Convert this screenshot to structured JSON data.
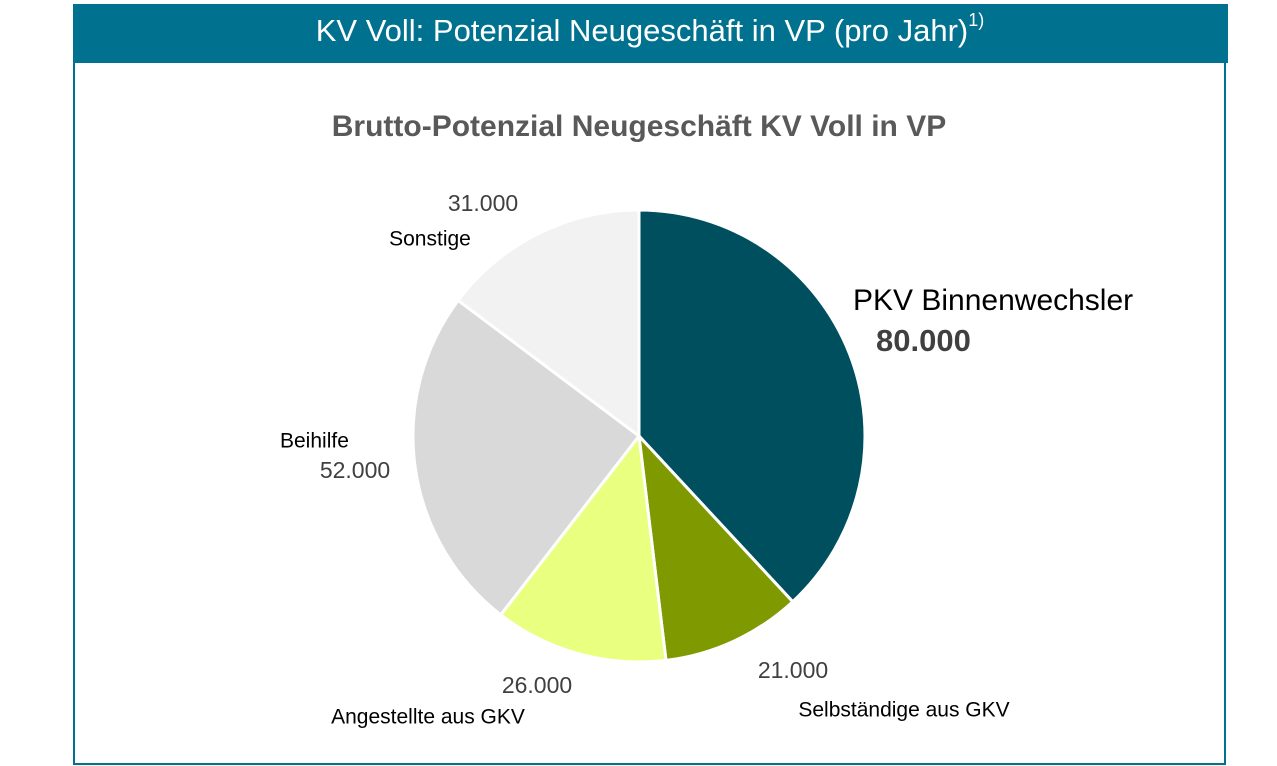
{
  "header": {
    "title": "KV Voll: Potenzial Neugeschäft in VP (pro Jahr)",
    "footnote": "1)"
  },
  "chart_data": {
    "type": "pie",
    "title": "Brutto-Potenzial Neugeschäft KV Voll in VP",
    "categories": [
      "PKV Binnenwechsler",
      "Selbständige aus GKV",
      "Angestellte aus GKV",
      "Beihilfe",
      "Sonstige"
    ],
    "values": [
      80000,
      21000,
      26000,
      52000,
      31000
    ],
    "value_labels": [
      "80.000",
      "21.000",
      "26.000",
      "52.000",
      "31.000"
    ],
    "colors": [
      "#004f5f",
      "#7f9900",
      "#e8ff80",
      "#d9d9d9",
      "#f2f2f2"
    ]
  }
}
